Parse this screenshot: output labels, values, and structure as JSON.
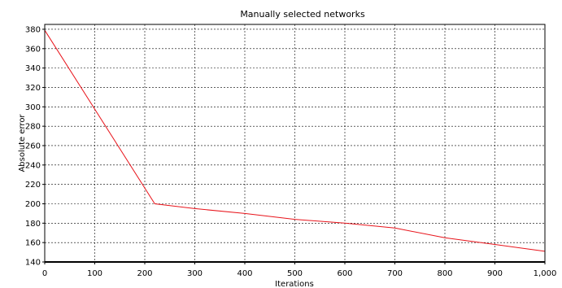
{
  "chart_data": {
    "type": "line",
    "title": "Manually selected networks",
    "xlabel": "Iterations",
    "ylabel": "Absolute error",
    "xlim": [
      0,
      1000
    ],
    "ylim": [
      140,
      385
    ],
    "x_ticks": [
      0,
      100,
      200,
      300,
      400,
      500,
      600,
      700,
      800,
      900,
      1000
    ],
    "x_tick_labels": [
      "0",
      "100",
      "200",
      "300",
      "400",
      "500",
      "600",
      "700",
      "800",
      "900",
      "1,000"
    ],
    "y_ticks": [
      140,
      160,
      180,
      200,
      220,
      240,
      260,
      280,
      300,
      320,
      340,
      360,
      380
    ],
    "y_tick_labels": [
      "140",
      "160",
      "180",
      "200",
      "220",
      "240",
      "260",
      "280",
      "300",
      "320",
      "340",
      "360",
      "380"
    ],
    "grid": true,
    "grid_style": "dashed",
    "legend": "none",
    "series": [
      {
        "color": "#e8141b",
        "x": [
          0,
          220,
          300,
          400,
          500,
          600,
          700,
          800,
          900,
          1000
        ],
        "y": [
          379,
          200,
          195,
          190,
          184,
          180,
          175,
          165,
          158,
          151
        ]
      },
      {
        "color": "#000000",
        "x": [
          0,
          1000
        ],
        "y": [
          140,
          140
        ]
      }
    ],
    "colors": {
      "axis": "#000000",
      "grid": "#000000",
      "background": "#ffffff"
    }
  }
}
